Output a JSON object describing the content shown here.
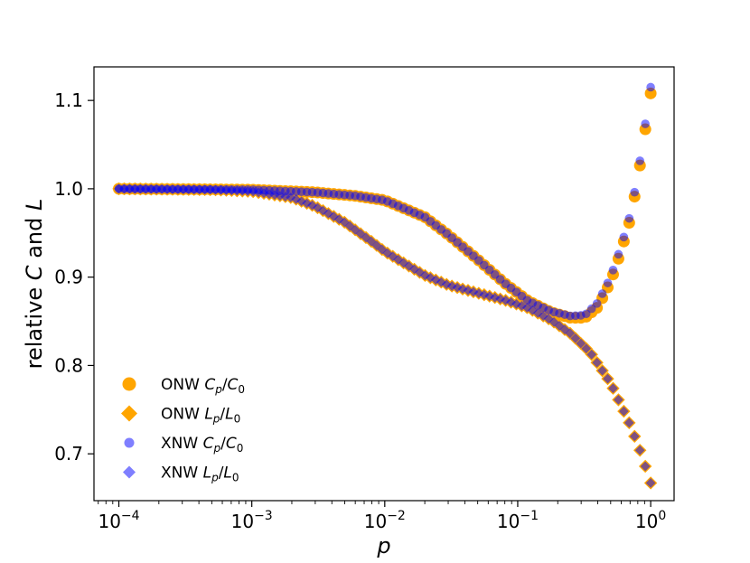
{
  "chart_data": {
    "type": "scatter",
    "title": "",
    "xscale": "log",
    "xlabel": "p",
    "ylabel": "relative C and L",
    "ylabel_parts": {
      "pre": "relative ",
      "c": "C",
      "mid": " and ",
      "l": "L"
    },
    "xlim": [
      6.5e-05,
      1.5
    ],
    "ylim": [
      0.647,
      1.138
    ],
    "xticks": [
      {
        "value": 0.0001,
        "base": "10",
        "exp": "−4"
      },
      {
        "value": 0.001,
        "base": "10",
        "exp": "−3"
      },
      {
        "value": 0.01,
        "base": "10",
        "exp": "−2"
      },
      {
        "value": 0.1,
        "base": "10",
        "exp": "−1"
      },
      {
        "value": 1,
        "base": "10",
        "exp": "0"
      }
    ],
    "yticks": [
      {
        "value": 0.7,
        "label": "0.7"
      },
      {
        "value": 0.8,
        "label": "0.8"
      },
      {
        "value": 0.9,
        "label": "0.9"
      },
      {
        "value": 1.0,
        "label": "1.0"
      },
      {
        "value": 1.1,
        "label": "1.1"
      }
    ],
    "legend_position": "lower-left",
    "colors": {
      "orange": "#ffa500",
      "blue": "#0000ff",
      "blue_alpha": 0.5
    },
    "n_points": 100,
    "series": [
      {
        "name": "ONW Cp/C0",
        "legend": {
          "pre": "ONW ",
          "a": "C",
          "asub": "p",
          "b": "C",
          "bsub": "0"
        },
        "marker": "circle",
        "color": "#ffa500",
        "alpha": 1.0,
        "curve": [
          [
            0.0001,
            1.0
          ],
          [
            0.001,
            0.999
          ],
          [
            0.003,
            0.996
          ],
          [
            0.006,
            0.992
          ],
          [
            0.01,
            0.987
          ],
          [
            0.02,
            0.968
          ],
          [
            0.03,
            0.948
          ],
          [
            0.05,
            0.92
          ],
          [
            0.08,
            0.893
          ],
          [
            0.12,
            0.873
          ],
          [
            0.18,
            0.86
          ],
          [
            0.25,
            0.854
          ],
          [
            0.32,
            0.854
          ],
          [
            0.4,
            0.866
          ],
          [
            0.5,
            0.895
          ],
          [
            0.6,
            0.93
          ],
          [
            0.7,
            0.965
          ],
          [
            0.8,
            1.01
          ],
          [
            0.9,
            1.062
          ],
          [
            1.0,
            1.108
          ]
        ]
      },
      {
        "name": "ONW Lp/L0",
        "legend": {
          "pre": "ONW ",
          "a": "L",
          "asub": "p",
          "b": "L",
          "bsub": "0"
        },
        "marker": "diamond",
        "color": "#ffa500",
        "alpha": 1.0,
        "curve": [
          [
            0.0001,
            1.0
          ],
          [
            0.0005,
            0.999
          ],
          [
            0.001,
            0.997
          ],
          [
            0.002,
            0.99
          ],
          [
            0.003,
            0.98
          ],
          [
            0.005,
            0.962
          ],
          [
            0.008,
            0.94
          ],
          [
            0.01,
            0.929
          ],
          [
            0.015,
            0.913
          ],
          [
            0.02,
            0.902
          ],
          [
            0.03,
            0.891
          ],
          [
            0.05,
            0.882
          ],
          [
            0.08,
            0.874
          ],
          [
            0.12,
            0.865
          ],
          [
            0.18,
            0.851
          ],
          [
            0.25,
            0.836
          ],
          [
            0.35,
            0.815
          ],
          [
            0.5,
            0.78
          ],
          [
            0.7,
            0.733
          ],
          [
            0.85,
            0.7
          ],
          [
            1.0,
            0.667
          ]
        ]
      },
      {
        "name": "XNW Cp/C0",
        "legend": {
          "pre": "XNW ",
          "a": "C",
          "asub": "p",
          "b": "C",
          "bsub": "0"
        },
        "marker": "circle",
        "color": "#0000ff",
        "alpha": 0.5,
        "curve": [
          [
            0.0001,
            1.0
          ],
          [
            0.001,
            0.999
          ],
          [
            0.003,
            0.996
          ],
          [
            0.006,
            0.992
          ],
          [
            0.01,
            0.987
          ],
          [
            0.02,
            0.968
          ],
          [
            0.03,
            0.948
          ],
          [
            0.05,
            0.92
          ],
          [
            0.08,
            0.893
          ],
          [
            0.12,
            0.873
          ],
          [
            0.18,
            0.861
          ],
          [
            0.25,
            0.856
          ],
          [
            0.32,
            0.857
          ],
          [
            0.4,
            0.871
          ],
          [
            0.5,
            0.9
          ],
          [
            0.6,
            0.935
          ],
          [
            0.7,
            0.97
          ],
          [
            0.8,
            1.015
          ],
          [
            0.9,
            1.068
          ],
          [
            1.0,
            1.115
          ]
        ]
      },
      {
        "name": "XNW Lp/L0",
        "legend": {
          "pre": "XNW ",
          "a": "L",
          "asub": "p",
          "b": "L",
          "bsub": "0"
        },
        "marker": "diamond",
        "color": "#0000ff",
        "alpha": 0.5,
        "curve": [
          [
            0.0001,
            1.0
          ],
          [
            0.0005,
            0.999
          ],
          [
            0.001,
            0.997
          ],
          [
            0.002,
            0.99
          ],
          [
            0.003,
            0.98
          ],
          [
            0.005,
            0.962
          ],
          [
            0.008,
            0.94
          ],
          [
            0.01,
            0.929
          ],
          [
            0.015,
            0.913
          ],
          [
            0.02,
            0.902
          ],
          [
            0.03,
            0.891
          ],
          [
            0.05,
            0.882
          ],
          [
            0.08,
            0.874
          ],
          [
            0.12,
            0.865
          ],
          [
            0.18,
            0.851
          ],
          [
            0.25,
            0.836
          ],
          [
            0.35,
            0.815
          ],
          [
            0.5,
            0.78
          ],
          [
            0.7,
            0.733
          ],
          [
            0.85,
            0.7
          ],
          [
            1.0,
            0.667
          ]
        ]
      }
    ]
  }
}
